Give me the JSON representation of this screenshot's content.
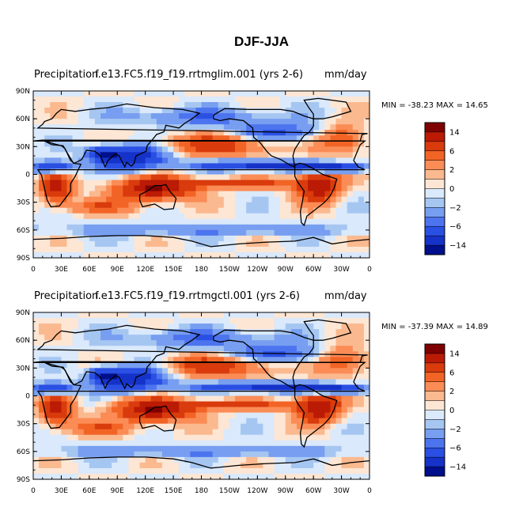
{
  "title": "DJF-JJA",
  "colors": {
    "levels": [
      "#7f0000",
      "#bb1a05",
      "#d93b0c",
      "#f26425",
      "#fb8c56",
      "#fbb98f",
      "#fde6d4",
      "#dae9fb",
      "#a6c6f2",
      "#779ef0",
      "#4d74ef",
      "#2a4fe3",
      "#1532c9",
      "#000f8c"
    ],
    "land": "#000000"
  },
  "chart_data": [
    {
      "type": "heatmap",
      "left_title": "Precipitation",
      "center_title": "f.e13.FC5.f19_f19.rrtmglim.001 (yrs 2-6)",
      "right_title": "mm/day",
      "minmax": "MIN = -38.23 MAX =  14.65",
      "xticks": [
        "0",
        "30E",
        "60E",
        "90E",
        "120E",
        "150E",
        "180",
        "150W",
        "120W",
        "90W",
        "60W",
        "30W",
        "0"
      ],
      "yticks": [
        "90N",
        "60N",
        "30N",
        "0",
        "30S",
        "60S",
        "90S"
      ],
      "colorbar_labels": [
        "14",
        "6",
        "2",
        "0",
        "-2",
        "-6",
        "-14"
      ],
      "data_range": [
        -38.23,
        14.65
      ]
    },
    {
      "type": "heatmap",
      "left_title": "Precipitation",
      "center_title": "f.e13.FC5.f19_f19.rrtmgctl.001 (yrs 2-6)",
      "right_title": "mm/day",
      "minmax": "MIN = -37.39 MAX =  14.89",
      "xticks": [
        "0",
        "30E",
        "60E",
        "90E",
        "120E",
        "150E",
        "180",
        "150W",
        "120W",
        "90W",
        "60W",
        "30W",
        "0"
      ],
      "yticks": [
        "90N",
        "60N",
        "30N",
        "0",
        "30S",
        "60S",
        "90S"
      ],
      "colorbar_labels": [
        "14",
        "6",
        "2",
        "0",
        "-2",
        "-6",
        "-14"
      ],
      "data_range": [
        -37.39,
        14.89
      ]
    }
  ]
}
